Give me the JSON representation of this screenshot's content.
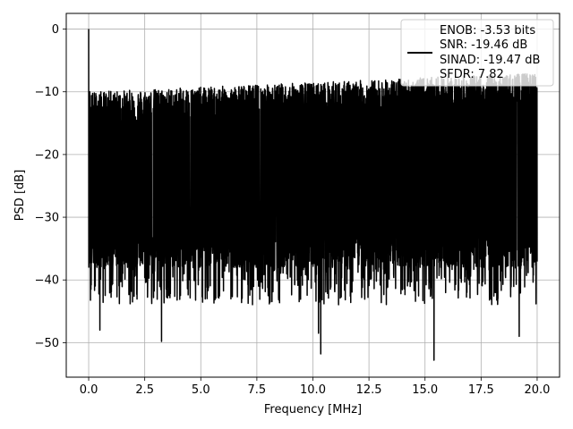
{
  "chart_data": {
    "type": "line",
    "xlabel": "Frequency [MHz]",
    "ylabel": "PSD [dB]",
    "xlim": [
      -1.0,
      21.0
    ],
    "ylim": [
      -55.5,
      2.5
    ],
    "x_ticks": [
      0.0,
      2.5,
      5.0,
      7.5,
      10.0,
      12.5,
      15.0,
      17.5,
      20.0
    ],
    "x_tick_labels": [
      "0.0",
      "2.5",
      "5.0",
      "7.5",
      "10.0",
      "12.5",
      "15.0",
      "17.5",
      "20.0"
    ],
    "y_ticks": [
      0,
      -10,
      -20,
      -30,
      -40,
      -50
    ],
    "y_tick_labels": [
      "0",
      "−10",
      "−20",
      "−30",
      "−40",
      "−50"
    ],
    "grid": true,
    "legend_position": "top-right",
    "series": [
      {
        "color": "#000000",
        "x_range": [
          0.0,
          20.0
        ],
        "description_points": [
          {
            "x": 0.0,
            "y": 0.0
          },
          {
            "x": 0.05,
            "y": -10.0
          },
          {
            "x": 0.1,
            "y": -41.5
          },
          {
            "x": 0.5,
            "y": -48.0
          },
          {
            "x": 3.25,
            "y": -49.8
          },
          {
            "x": 10.25,
            "y": -48.5
          },
          {
            "x": 10.35,
            "y": -51.8
          },
          {
            "x": 15.4,
            "y": -52.8
          },
          {
            "x": 19.2,
            "y": -49.0
          }
        ],
        "upper_envelope_db": [
          -13,
          -10
        ],
        "noise_floor_db": -21
      }
    ],
    "legend_entries": [
      "ENOB: -3.53 bits",
      "SNR: -19.46 dB",
      "SINAD: -19.47 dB",
      "SFDR: 7.82"
    ]
  }
}
